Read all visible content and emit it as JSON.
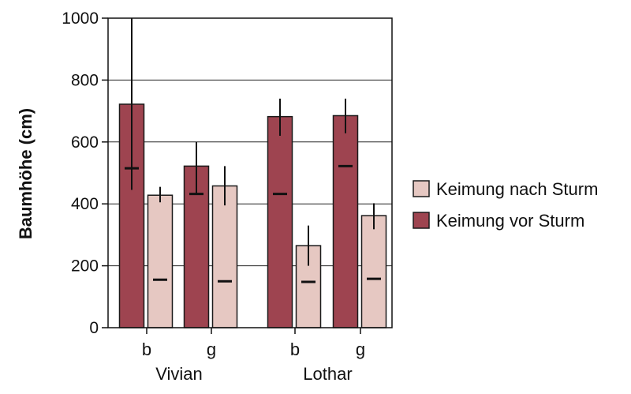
{
  "chart_data": {
    "type": "bar",
    "ylabel": "Baumhöhe (cm)",
    "xlabel": "",
    "ylim": [
      0,
      1000
    ],
    "yticks": [
      0,
      200,
      400,
      600,
      800,
      1000
    ],
    "grid": true,
    "legend_position": "right",
    "groups": [
      {
        "name": "Vivian",
        "categories": [
          "b",
          "g"
        ]
      },
      {
        "name": "Lothar",
        "categories": [
          "b",
          "g"
        ]
      }
    ],
    "categories": [
      "b",
      "g",
      "b",
      "g"
    ],
    "series": [
      {
        "name": "Keimung vor Sturm",
        "color": "#9e4450",
        "values": [
          722,
          522,
          682,
          685
        ],
        "error_low": [
          445,
          432,
          620,
          628
        ],
        "error_high": [
          1000,
          600,
          740,
          740
        ],
        "median": [
          515,
          432,
          432,
          522
        ]
      },
      {
        "name": "Keimung nach Sturm",
        "color": "#e6c8c2",
        "values": [
          428,
          458,
          265,
          362
        ],
        "error_low": [
          405,
          395,
          200,
          318
        ],
        "error_high": [
          455,
          522,
          330,
          402
        ],
        "median": [
          155,
          150,
          148,
          158
        ]
      }
    ],
    "legend": [
      "Keimung nach Sturm",
      "Keimung vor Sturm"
    ]
  }
}
